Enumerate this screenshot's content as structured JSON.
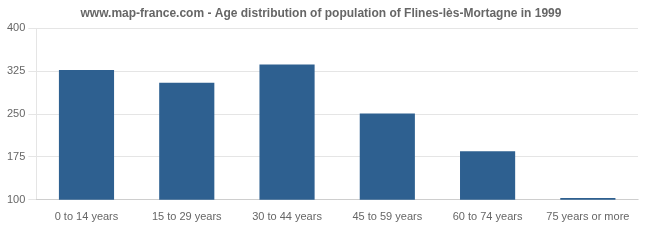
{
  "chart_data": {
    "type": "bar",
    "title": "www.map-france.com - Age distribution of population of Flines-lès-Mortagne in 1999",
    "categories": [
      "0 to 14 years",
      "15 to 29 years",
      "30 to 44 years",
      "45 to 59 years",
      "60 to 74 years",
      "75 years or more"
    ],
    "values": [
      327,
      305,
      337,
      251,
      185,
      103
    ],
    "color": "#2e6090",
    "ylim": [
      100,
      400
    ],
    "yticks": [
      100,
      175,
      250,
      325,
      400
    ],
    "grid": true
  }
}
